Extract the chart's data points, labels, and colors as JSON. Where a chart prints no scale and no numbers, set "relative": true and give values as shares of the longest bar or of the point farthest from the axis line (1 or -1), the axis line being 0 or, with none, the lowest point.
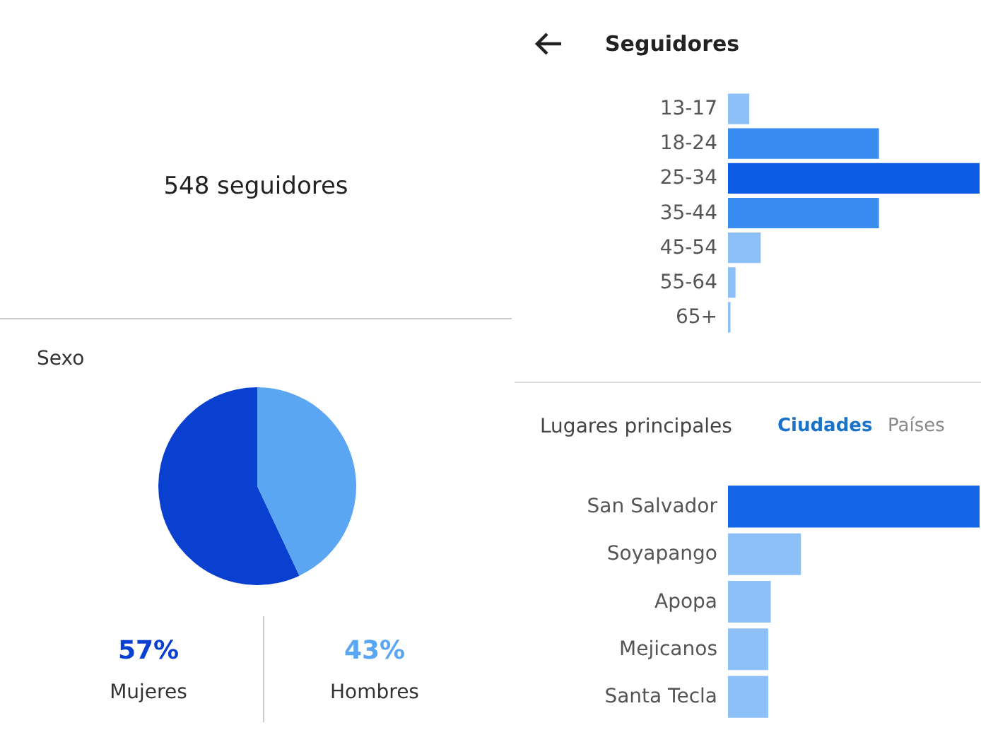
{
  "chart_data": [
    {
      "type": "other",
      "title": "548 seguidores"
    },
    {
      "type": "pie",
      "title": "Sexo",
      "categories": [
        "Mujeres",
        "Hombres"
      ],
      "values": [
        57,
        43
      ],
      "colors": [
        "#0a40cf",
        "#5aa6f2"
      ],
      "value_labels": [
        "57%",
        "43%"
      ]
    },
    {
      "type": "bar",
      "orientation": "horizontal",
      "relative": true,
      "title": "Seguidores",
      "categories": [
        "13-17",
        "18-24",
        "25-34",
        "35-44",
        "45-54",
        "55-64",
        "65+"
      ],
      "values": [
        0.085,
        0.6,
        1,
        0.6,
        0.13,
        0.03,
        0.01
      ],
      "colors": [
        "#8ec0f8",
        "#3a8cf0",
        "#0d5ce6",
        "#3a8cf0",
        "#8ec0f8",
        "#8ec0f8",
        "#8ec0f8"
      ]
    },
    {
      "type": "bar",
      "orientation": "horizontal",
      "relative": true,
      "title": "Lugares principales",
      "annotations": [
        "Ciudades",
        "Países"
      ],
      "categories": [
        "San Salvador",
        "Soyapango",
        "Apopa",
        "Mejicanos",
        "Santa Tecla"
      ],
      "values": [
        1,
        0.29,
        0.17,
        0.16,
        0.16
      ],
      "colors": [
        "#1565e8",
        "#8ec0f8",
        "#8ec0f8",
        "#8ec0f8",
        "#8ec0f8"
      ]
    }
  ]
}
